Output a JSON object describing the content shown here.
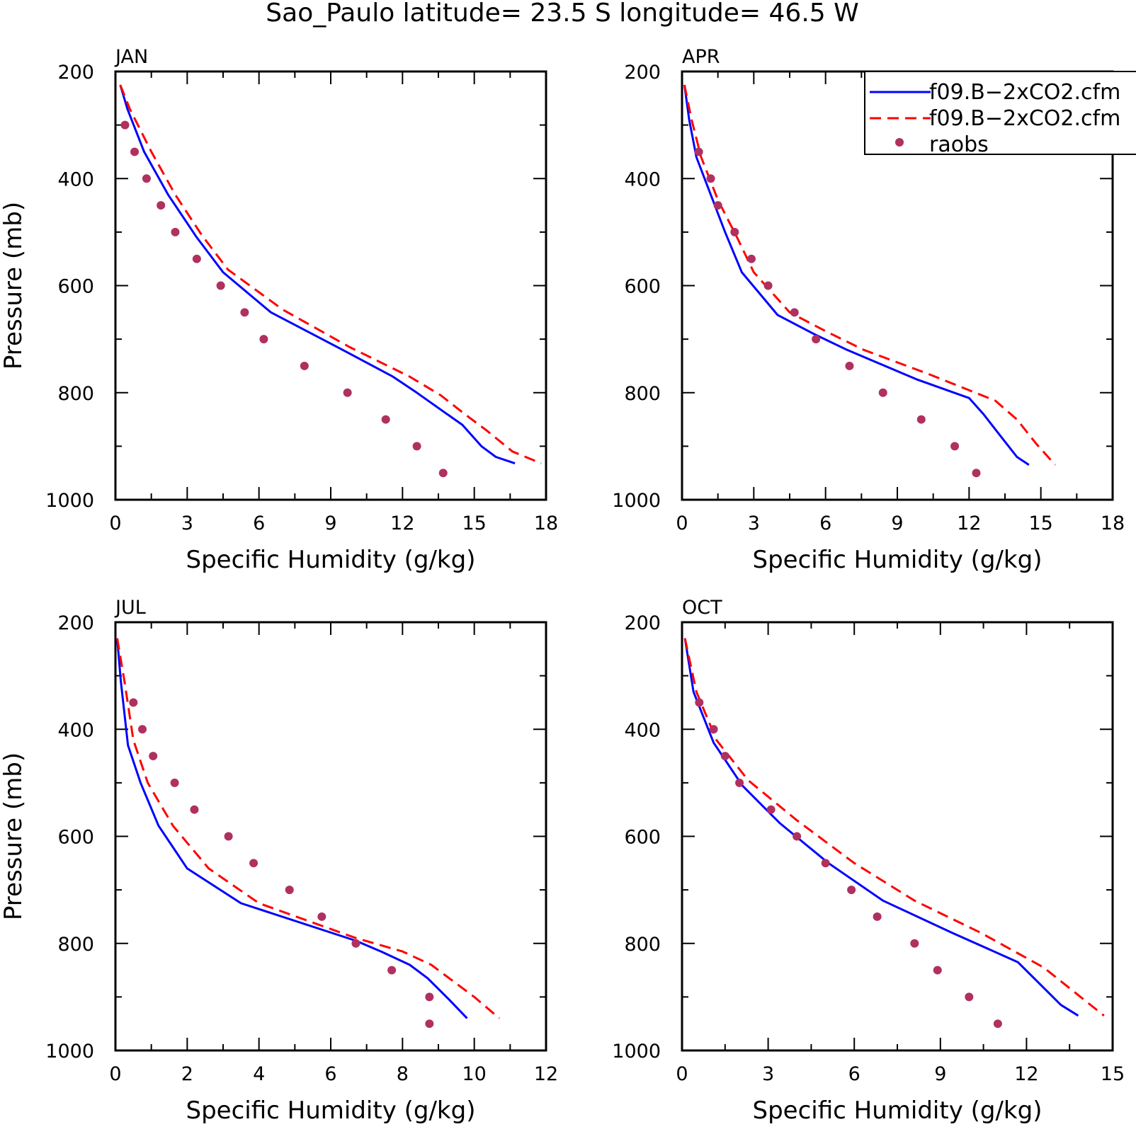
{
  "figure_title": "Sao_Paulo  latitude= 23.5 S longitude= 46.5 W",
  "colors": {
    "model_1": "#0000ff",
    "model_2": "#ff0000",
    "raobs": "#b03060",
    "axes": "#000000",
    "background": "#ffffff"
  },
  "legend": {
    "placement": "top-right of APR panel",
    "entries": [
      {
        "label": "f09.B−2xCO2.cfm",
        "style": "solid",
        "color": "#0000ff"
      },
      {
        "label": "f09.B−2xCO2.cfm",
        "style": "dashed",
        "color": "#ff0000"
      },
      {
        "label": "raobs",
        "style": "markers",
        "color": "#b03060"
      }
    ]
  },
  "chart_data": [
    {
      "type": "line",
      "title": "JAN",
      "xlabel": "Specific Humidity (g/kg)",
      "ylabel": "Pressure (mb)",
      "xlim": [
        0,
        18
      ],
      "ylim": [
        1000,
        200
      ],
      "y_inverted": true,
      "xticks": [
        0,
        3,
        6,
        9,
        12,
        15,
        18
      ],
      "yticks": [
        200,
        400,
        600,
        800,
        1000
      ],
      "series": [
        {
          "style": "solid",
          "color": "#0000ff",
          "x": [
            0.2,
            0.5,
            1.2,
            2.2,
            3.4,
            4.5,
            6.5,
            9.5,
            11.6,
            12.6,
            13.7,
            14.5,
            15.3,
            15.9,
            16.7
          ],
          "y": [
            225,
            270,
            350,
            430,
            510,
            575,
            650,
            720,
            770,
            800,
            835,
            860,
            900,
            920,
            932
          ]
        },
        {
          "style": "dashed",
          "color": "#ff0000",
          "x": [
            0.2,
            0.6,
            1.5,
            2.5,
            3.6,
            4.7,
            7.0,
            9.8,
            12.3,
            13.6,
            14.6,
            15.5,
            16.6,
            17.8
          ],
          "y": [
            225,
            270,
            350,
            430,
            505,
            570,
            645,
            715,
            770,
            805,
            840,
            870,
            910,
            932
          ]
        }
      ],
      "raobs": {
        "x": [
          0.4,
          0.8,
          1.3,
          1.9,
          2.5,
          3.4,
          4.4,
          5.4,
          6.2,
          7.9,
          9.7,
          11.3,
          12.6,
          13.7
        ],
        "y": [
          300,
          350,
          400,
          450,
          500,
          550,
          600,
          650,
          700,
          750,
          800,
          850,
          900,
          950
        ]
      }
    },
    {
      "type": "line",
      "title": "APR",
      "xlabel": "Specific Humidity (g/kg)",
      "ylabel": "",
      "xlim": [
        0,
        18
      ],
      "ylim": [
        1000,
        200
      ],
      "y_inverted": true,
      "xticks": [
        0,
        3,
        6,
        9,
        12,
        15,
        18
      ],
      "yticks": [
        200,
        400,
        600,
        800,
        1000
      ],
      "series": [
        {
          "style": "solid",
          "color": "#0000ff",
          "x": [
            0.1,
            0.3,
            0.6,
            1.2,
            1.8,
            2.5,
            4.0,
            5.5,
            6.9,
            9.8,
            12.0,
            12.6,
            13.3,
            14.0,
            14.5
          ],
          "y": [
            225,
            290,
            360,
            430,
            500,
            575,
            655,
            690,
            720,
            775,
            810,
            840,
            880,
            920,
            935
          ]
        },
        {
          "style": "dashed",
          "color": "#ff0000",
          "x": [
            0.1,
            0.4,
            0.8,
            1.5,
            2.3,
            3.0,
            4.5,
            6.0,
            7.6,
            10.3,
            13.1,
            14.0,
            14.8,
            15.6
          ],
          "y": [
            225,
            290,
            360,
            440,
            510,
            575,
            650,
            685,
            720,
            765,
            815,
            850,
            895,
            935
          ]
        }
      ],
      "raobs": {
        "x": [
          0.7,
          1.2,
          1.5,
          2.2,
          2.9,
          3.6,
          4.7,
          5.6,
          7.0,
          8.4,
          10.0,
          11.4,
          12.3
        ],
        "y": [
          350,
          400,
          450,
          500,
          550,
          600,
          650,
          700,
          750,
          800,
          850,
          900,
          950
        ]
      }
    },
    {
      "type": "line",
      "title": "JUL",
      "xlabel": "Specific Humidity (g/kg)",
      "ylabel": "Pressure (mb)",
      "xlim": [
        0,
        12
      ],
      "ylim": [
        1000,
        200
      ],
      "y_inverted": true,
      "xticks": [
        0,
        2,
        4,
        6,
        8,
        10,
        12
      ],
      "yticks": [
        200,
        400,
        600,
        800,
        1000
      ],
      "series": [
        {
          "style": "solid",
          "color": "#0000ff",
          "x": [
            0.05,
            0.15,
            0.35,
            0.7,
            1.2,
            2.0,
            3.5,
            6.7,
            7.4,
            8.2,
            8.7,
            9.3,
            9.8
          ],
          "y": [
            230,
            310,
            430,
            500,
            580,
            660,
            725,
            795,
            815,
            840,
            865,
            905,
            940
          ]
        },
        {
          "style": "dashed",
          "color": "#ff0000",
          "x": [
            0.05,
            0.25,
            0.5,
            0.9,
            1.6,
            2.6,
            4.0,
            6.7,
            8.0,
            8.8,
            9.4,
            10.0,
            10.7
          ],
          "y": [
            230,
            310,
            420,
            500,
            580,
            660,
            725,
            790,
            815,
            840,
            870,
            900,
            940
          ]
        }
      ],
      "raobs": {
        "x": [
          0.5,
          0.75,
          1.05,
          1.65,
          2.2,
          3.15,
          3.85,
          4.85,
          5.75,
          6.7,
          7.7,
          8.75,
          8.75
        ],
        "y": [
          350,
          400,
          450,
          500,
          550,
          600,
          650,
          700,
          750,
          800,
          850,
          900,
          950
        ]
      }
    },
    {
      "type": "line",
      "title": "OCT",
      "xlabel": "Specific Humidity (g/kg)",
      "ylabel": "",
      "xlim": [
        0,
        15
      ],
      "ylim": [
        1000,
        200
      ],
      "y_inverted": true,
      "xticks": [
        0,
        3,
        6,
        9,
        12,
        15
      ],
      "yticks": [
        200,
        400,
        600,
        800,
        1000
      ],
      "series": [
        {
          "style": "solid",
          "color": "#0000ff",
          "x": [
            0.1,
            0.4,
            1.1,
            2.1,
            3.4,
            5.1,
            7.0,
            9.4,
            11.7,
            13.2,
            13.8
          ],
          "y": [
            230,
            330,
            425,
            505,
            575,
            650,
            720,
            780,
            835,
            915,
            935
          ]
        },
        {
          "style": "dashed",
          "color": "#ff0000",
          "x": [
            0.1,
            0.5,
            1.2,
            2.3,
            4.0,
            6.0,
            8.1,
            10.4,
            12.6,
            14.7
          ],
          "y": [
            230,
            330,
            420,
            495,
            570,
            650,
            720,
            780,
            845,
            935
          ]
        }
      ],
      "raobs": {
        "x": [
          0.6,
          1.1,
          1.5,
          2.0,
          3.1,
          4.0,
          5.0,
          5.9,
          6.8,
          8.1,
          8.9,
          10.0,
          11.0
        ],
        "y": [
          350,
          400,
          450,
          500,
          550,
          600,
          650,
          700,
          750,
          800,
          850,
          900,
          950
        ]
      }
    }
  ]
}
